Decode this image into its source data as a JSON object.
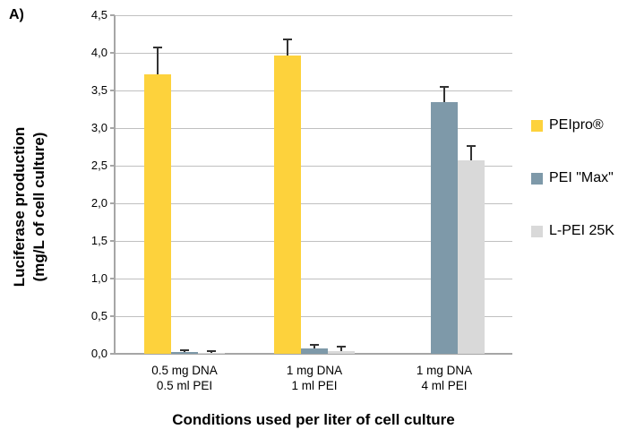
{
  "figure_label": "A)",
  "chart_data": {
    "type": "bar",
    "title": "",
    "xlabel": "Conditions used per liter of cell culture",
    "ylabel_lines": [
      "Luciferase production",
      "(mg/L of cell culture)"
    ],
    "categories": [
      [
        "0.5 mg DNA",
        "0.5 ml PEI"
      ],
      [
        "1 mg DNA",
        "1 ml PEI"
      ],
      [
        "1 mg DNA",
        "4 ml PEI"
      ]
    ],
    "series": [
      {
        "name": "PEIpro®",
        "color": "#FDD23C",
        "values": [
          3.71,
          3.97,
          null
        ],
        "errors": [
          0.36,
          0.21,
          null
        ]
      },
      {
        "name": "PEI \"Max\"",
        "color": "#7E99A9",
        "values": [
          0.02,
          0.07,
          3.35
        ],
        "errors": [
          0.03,
          0.05,
          0.2
        ]
      },
      {
        "name": "L-PEI 25K",
        "color": "#D9D9D9",
        "values": [
          0.01,
          0.03,
          2.57
        ],
        "errors": [
          0.02,
          0.07,
          0.19
        ]
      }
    ],
    "ylim": [
      0,
      4.5
    ],
    "ytick_step": 0.5,
    "ytick_labels": [
      "0,0",
      "0,5",
      "1,0",
      "1,5",
      "2,0",
      "2,5",
      "3,0",
      "3,5",
      "4,0",
      "4,5"
    ],
    "grid": true,
    "legend_position": "right"
  },
  "colors": {
    "grid": "#C0C0C0",
    "axis": "#A6A6A6",
    "error_bar": "#333333",
    "text": "#000000",
    "background": "#FFFFFF"
  }
}
